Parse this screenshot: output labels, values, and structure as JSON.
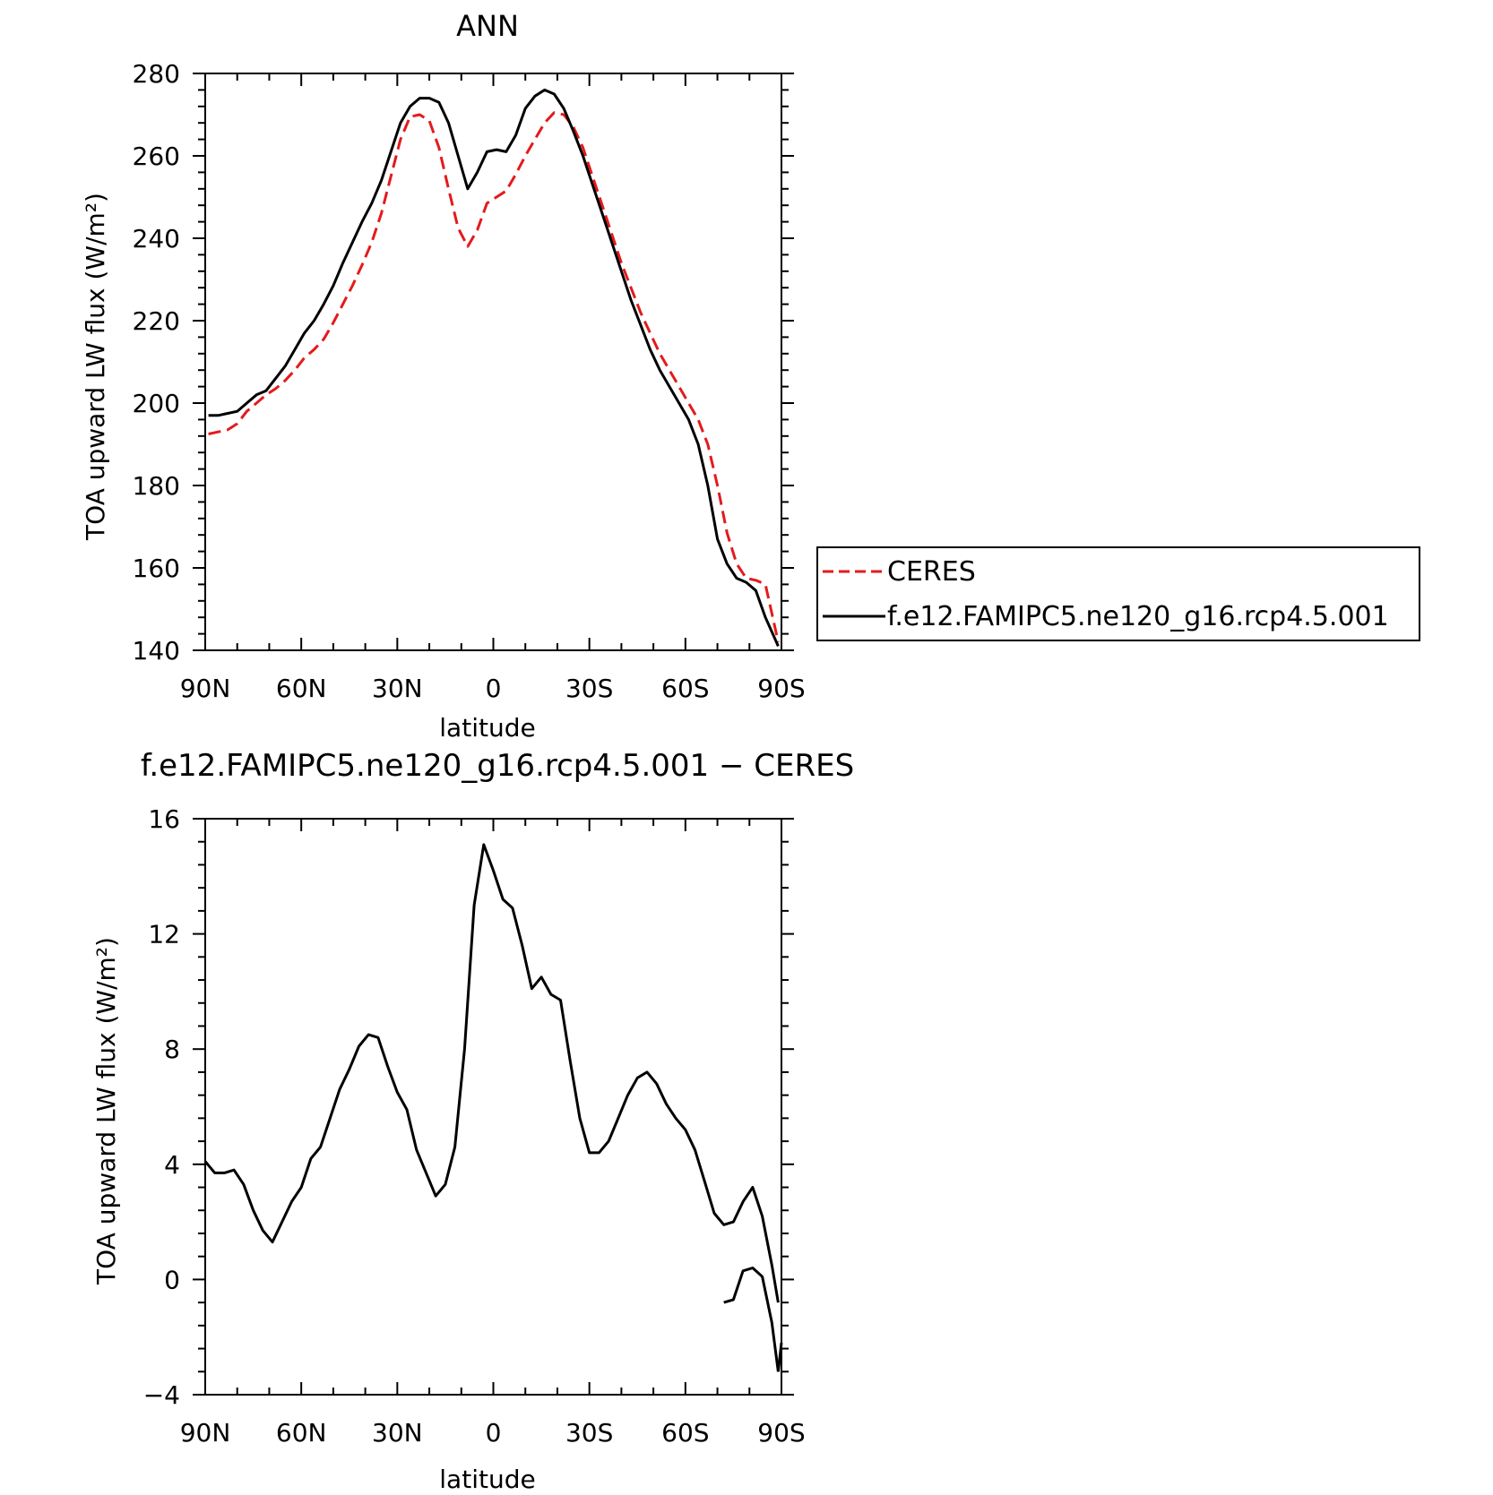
{
  "chart_data": [
    {
      "type": "line",
      "title": "ANN",
      "xlabel": "latitude",
      "ylabel": "TOA upward LW flux (W/m²)",
      "xlim": [
        90,
        -90
      ],
      "ylim": [
        140,
        280
      ],
      "yticks": [
        "280",
        "260",
        "240",
        "220",
        "200",
        "180",
        "160",
        "140"
      ],
      "xticks": [
        "90N",
        "60N",
        "30N",
        "0",
        "30S",
        "60S",
        "90S"
      ],
      "grid": false,
      "legend": "outside-right",
      "series": [
        {
          "name": "CERES",
          "color": "#e41a1c",
          "dash": "dashed",
          "x": [
            89,
            86,
            83,
            80,
            77,
            74,
            71,
            68,
            65,
            62,
            59,
            56,
            53,
            50,
            47,
            44,
            41,
            38,
            35,
            32,
            29,
            26,
            23,
            20,
            17,
            14,
            11,
            8,
            5,
            2,
            -1,
            -4,
            -7,
            -10,
            -13,
            -16,
            -19,
            -22,
            -25,
            -28,
            -31,
            -34,
            -37,
            -40,
            -43,
            -46,
            -49,
            -52,
            -55,
            -58,
            -61,
            -64,
            -67,
            -70,
            -73,
            -76,
            -79,
            -82,
            -85,
            -89
          ],
          "values": [
            192.5,
            193,
            193.5,
            195,
            198,
            200,
            202,
            203.5,
            205.5,
            208,
            211,
            213,
            215.5,
            219.5,
            224,
            228.5,
            233.5,
            239,
            246,
            255,
            264,
            269.5,
            270,
            268.5,
            262,
            252,
            242.5,
            238,
            242,
            248.5,
            250,
            251.5,
            255.5,
            260,
            264,
            268,
            270.5,
            270,
            267,
            262,
            255,
            248,
            241,
            234,
            228,
            222,
            217,
            212,
            208,
            204,
            200,
            196,
            190,
            180,
            168.5,
            161,
            157.5,
            157,
            156,
            142
          ]
        },
        {
          "name": "f.e12.FAMIPC5.ne120_g16.rcp4.5.001",
          "color": "#000000",
          "dash": "solid",
          "x": [
            89,
            86,
            83,
            80,
            77,
            74,
            71,
            68,
            65,
            62,
            59,
            56,
            53,
            50,
            47,
            44,
            41,
            38,
            35,
            32,
            29,
            26,
            23,
            20,
            17,
            14,
            11,
            8,
            5,
            2,
            -1,
            -4,
            -7,
            -10,
            -13,
            -16,
            -19,
            -22,
            -25,
            -28,
            -31,
            -34,
            -37,
            -40,
            -43,
            -46,
            -49,
            -52,
            -55,
            -58,
            -61,
            -64,
            -67,
            -70,
            -73,
            -76,
            -79,
            -82,
            -85,
            -89
          ],
          "values": [
            197,
            197,
            197.5,
            198,
            200,
            202,
            203,
            206,
            209,
            213,
            217,
            220,
            224,
            228.5,
            234,
            239,
            244,
            248.5,
            254,
            261,
            268,
            272,
            274,
            274,
            273,
            268,
            260,
            252,
            256,
            261,
            261.5,
            261,
            265,
            271.5,
            274.5,
            276,
            275,
            271.5,
            266,
            260,
            253,
            246,
            239,
            232,
            225,
            219,
            213,
            208,
            204,
            200,
            196,
            190,
            180,
            167,
            161,
            157.5,
            156.5,
            154.5,
            148,
            141
          ]
        }
      ]
    },
    {
      "type": "line",
      "title": "f.e12.FAMIPC5.ne120_g16.rcp4.5.001 − CERES",
      "xlabel": "latitude",
      "ylabel": "TOA upward LW flux (W/m²)",
      "xlim": [
        90,
        -90
      ],
      "ylim": [
        -4,
        16
      ],
      "yticks": [
        "16",
        "12",
        "8",
        "4",
        "0",
        "−4"
      ],
      "xticks": [
        "90N",
        "60N",
        "30N",
        "0",
        "30S",
        "60S",
        "90S"
      ],
      "grid": false,
      "series": [
        {
          "color": "#000000",
          "dash": "solid",
          "x": [
            90,
            87,
            84,
            81,
            78,
            75,
            72,
            69,
            66,
            63,
            60,
            57,
            54,
            51,
            48,
            45,
            42,
            39,
            36,
            33,
            30,
            27,
            24,
            21,
            18,
            15,
            12,
            9,
            6,
            3,
            0,
            -3,
            -6,
            -9,
            -12,
            -15,
            -18,
            -21,
            -24,
            -27,
            -30,
            -33,
            -36,
            -39,
            -42,
            -45,
            -48,
            -51,
            -54,
            -57,
            -60,
            -63,
            -66,
            -69,
            -72,
            -75,
            -78,
            -81,
            -84,
            -87,
            -89
          ],
          "values": [
            4.1,
            3.7,
            3.7,
            3.8,
            3.3,
            2.4,
            1.7,
            1.3,
            2,
            2.7,
            3.2,
            4.2,
            4.6,
            5.6,
            6.6,
            7.3,
            8.1,
            8.5,
            8.4,
            7.4,
            6.5,
            5.9,
            4.5,
            3.7,
            2.9,
            3.3,
            4.6,
            8,
            13,
            15.1,
            14.2,
            13.2,
            12.9,
            11.6,
            10.1,
            10.5,
            9.9,
            9.7,
            7.6,
            5.6,
            4.4,
            4.4,
            4.8,
            5.6,
            6.4,
            7,
            7.2,
            6.8,
            6.1,
            5.6,
            5.2,
            4.5,
            3.4,
            2.3,
            1.9,
            2,
            2.7,
            3.2,
            2.2,
            0.5,
            -0.8
          ]
        }
      ],
      "series_tail": {
        "x": [
          -72,
          -75,
          -78,
          -81,
          -84,
          -87,
          -89
        ],
        "values": [
          -0.8,
          -0.7,
          0.3,
          0.4,
          0.1,
          -1.5,
          -3.2
        ]
      },
      "series_end": {
        "x": [
          -89,
          -90
        ],
        "values": [
          -3.2,
          -2.2
        ]
      }
    }
  ],
  "legend": {
    "entries": [
      {
        "label": "CERES",
        "color": "#e41a1c",
        "dash": "dashed"
      },
      {
        "label": "f.e12.FAMIPC5.ne120_g16.rcp4.5.001",
        "color": "#000000",
        "dash": "solid"
      }
    ]
  }
}
